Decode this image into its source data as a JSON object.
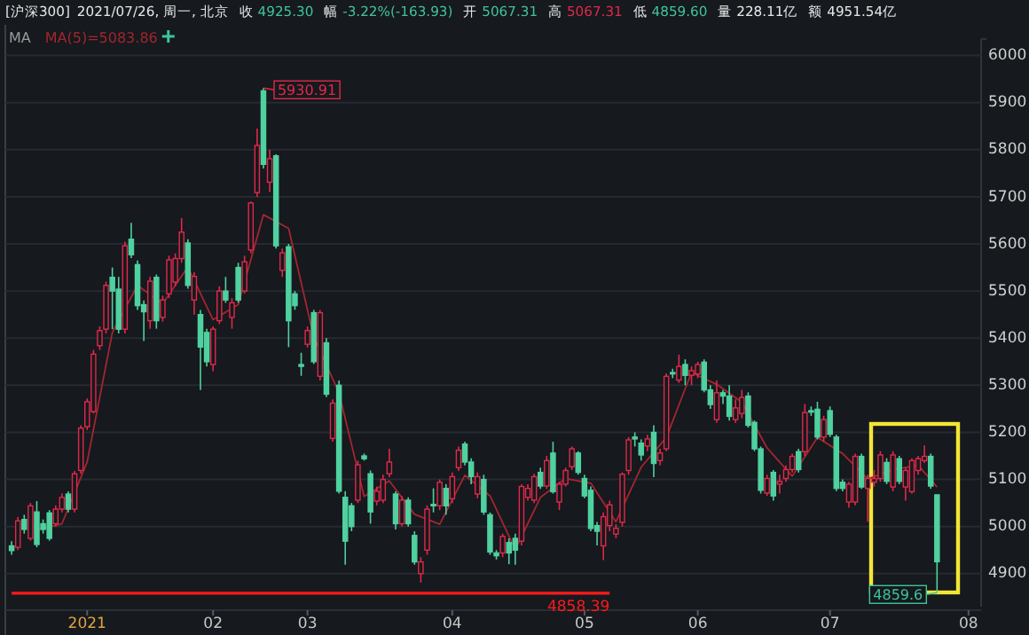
{
  "chart_data": {
    "type": "candlestick",
    "title": "[沪深300]",
    "subtitle": "2021/07/26, 周一, 北京",
    "legend_title": "MA",
    "legend": "top left",
    "grid": "y",
    "ylim": [
      4830,
      6035
    ],
    "categories": [
      null,
      null,
      null,
      null,
      null,
      null,
      null,
      null,
      null,
      null,
      null,
      null,
      "2021",
      null,
      null,
      null,
      null,
      null,
      null,
      null,
      null,
      null,
      null,
      null,
      null,
      null,
      null,
      null,
      null,
      null,
      null,
      null,
      "02",
      null,
      null,
      null,
      null,
      null,
      null,
      null,
      null,
      null,
      null,
      null,
      null,
      null,
      null,
      "03",
      null,
      null,
      null,
      null,
      null,
      null,
      null,
      null,
      null,
      null,
      null,
      null,
      null,
      null,
      null,
      null,
      null,
      null,
      null,
      null,
      null,
      null,
      "04",
      null,
      null,
      null,
      null,
      null,
      null,
      null,
      null,
      null,
      null,
      null,
      null,
      null,
      null,
      null,
      null,
      null,
      null,
      null,
      null,
      "05",
      null,
      null,
      null,
      null,
      null,
      null,
      null,
      null,
      null,
      null,
      null,
      null,
      null,
      null,
      null,
      null,
      null,
      "06",
      null,
      null,
      null,
      null,
      null,
      null,
      null,
      null,
      null,
      null,
      null,
      null,
      null,
      null,
      null,
      null,
      null,
      null,
      null,
      null,
      "07",
      null,
      null,
      null,
      null,
      null,
      null,
      null,
      null,
      null,
      null,
      null,
      null,
      null,
      null,
      null,
      null,
      null,
      null,
      null,
      null,
      null,
      "08"
    ],
    "yticks": [
      4900,
      5000,
      5100,
      5200,
      5300,
      5400,
      5500,
      5600,
      5700,
      5800,
      5900,
      6000
    ],
    "annotations": [
      "收 4925.30",
      "幅 -3.22%(-163.93)",
      "开 5067.31",
      "高 5067.31",
      "低 4859.60",
      "量 228.11亿",
      "额 4951.54亿"
    ],
    "series": [
      {
        "ohlc": [
          [
            4959,
            4969,
            4940,
            4949
          ],
          [
            4956,
            5020,
            4950,
            5012
          ],
          [
            5015,
            5025,
            4985,
            4994
          ],
          [
            4975,
            5050,
            4970,
            5044
          ],
          [
            5031,
            5054,
            4956,
            4962
          ],
          [
            5006,
            5015,
            4985,
            4994
          ],
          [
            5029,
            5035,
            4970,
            4975
          ],
          [
            5006,
            5045,
            5000,
            5037
          ],
          [
            5037,
            5070,
            5030,
            5062
          ],
          [
            5069,
            5075,
            5030,
            5037
          ],
          [
            5037,
            5118,
            5030,
            5112
          ],
          [
            5119,
            5215,
            5112,
            5209
          ],
          [
            5212,
            5272,
            5205,
            5265
          ],
          [
            5244,
            5375,
            5240,
            5366
          ],
          [
            5384,
            5425,
            5375,
            5416
          ],
          [
            5419,
            5520,
            5410,
            5512
          ],
          [
            5529,
            5550,
            5419,
            5500
          ],
          [
            5504,
            5530,
            5410,
            5419
          ],
          [
            5419,
            5605,
            5410,
            5596
          ],
          [
            5610,
            5645,
            5570,
            5577
          ],
          [
            5556,
            5565,
            5460,
            5469
          ],
          [
            5471,
            5480,
            5394,
            5456
          ],
          [
            5437,
            5530,
            5420,
            5521
          ],
          [
            5529,
            5535,
            5420,
            5437
          ],
          [
            5444,
            5490,
            5435,
            5481
          ],
          [
            5494,
            5575,
            5485,
            5566
          ],
          [
            5519,
            5580,
            5510,
            5569
          ],
          [
            5569,
            5655,
            5560,
            5625
          ],
          [
            5602,
            5610,
            5505,
            5512
          ],
          [
            5481,
            5540,
            5450,
            5531
          ],
          [
            5450,
            5460,
            5290,
            5381
          ],
          [
            5412,
            5420,
            5340,
            5350
          ],
          [
            5344,
            5425,
            5330,
            5419
          ],
          [
            5437,
            5510,
            5430,
            5500
          ],
          [
            5500,
            5530,
            5475,
            5481
          ],
          [
            5444,
            5485,
            5420,
            5475
          ],
          [
            5550,
            5560,
            5475,
            5481
          ],
          [
            5500,
            5575,
            5495,
            5562
          ],
          [
            5587,
            5690,
            5580,
            5687
          ],
          [
            5709,
            5845,
            5700,
            5809
          ],
          [
            5925,
            5930.91,
            5760,
            5769
          ],
          [
            5731,
            5800,
            5710,
            5781
          ],
          [
            5787,
            5790,
            5590,
            5596
          ],
          [
            5544,
            5590,
            5530,
            5581
          ],
          [
            5594,
            5600,
            5381,
            5437
          ],
          [
            5494,
            5500,
            5460,
            5469
          ],
          [
            5344,
            5369,
            5320,
            5340
          ],
          [
            5387,
            5425,
            5380,
            5416
          ],
          [
            5454,
            5460,
            5345,
            5350
          ],
          [
            5319,
            5460,
            5310,
            5454
          ],
          [
            5390,
            5400,
            5275,
            5281
          ],
          [
            5187,
            5270,
            5180,
            5262
          ],
          [
            5300,
            5310,
            5070,
            5075
          ],
          [
            5062,
            5075,
            4919,
            4969
          ],
          [
            5044,
            5050,
            4990,
            5000
          ],
          [
            5056,
            5140,
            5050,
            5131
          ],
          [
            5150,
            5155,
            5140,
            5144
          ],
          [
            5112,
            5119,
            5006,
            5031
          ],
          [
            5054,
            5085,
            5045,
            5075
          ],
          [
            5056,
            5110,
            5050,
            5100
          ],
          [
            5112,
            5165,
            5105,
            5137
          ],
          [
            5069,
            5075,
            4994,
            5006
          ],
          [
            5006,
            5065,
            5000,
            5056
          ],
          [
            5056,
            5062,
            5000,
            5006
          ],
          [
            4981,
            4990,
            4919,
            4925
          ],
          [
            4900,
            4935,
            4881,
            4925
          ],
          [
            4950,
            5045,
            4940,
            5037
          ],
          [
            5047,
            5081,
            5030,
            5044
          ],
          [
            5044,
            5100,
            5035,
            5094
          ],
          [
            5081,
            5090,
            5025,
            5044
          ],
          [
            5059,
            5115,
            5050,
            5106
          ],
          [
            5125,
            5170,
            5118,
            5162
          ],
          [
            5175,
            5180,
            5130,
            5137
          ],
          [
            5137,
            5145,
            5090,
            5106
          ],
          [
            5069,
            5115,
            5060,
            5106
          ],
          [
            5100,
            5110,
            5025,
            5031
          ],
          [
            5025,
            5030,
            4940,
            4946
          ],
          [
            4944,
            4950,
            4930,
            4938
          ],
          [
            4944,
            4985,
            4935,
            4979
          ],
          [
            4966,
            4975,
            4920,
            4944
          ],
          [
            4975,
            4985,
            4919,
            4950
          ],
          [
            4969,
            5090,
            4960,
            5085
          ],
          [
            5062,
            5090,
            5055,
            5081
          ],
          [
            5056,
            5112,
            5050,
            5106
          ],
          [
            5115,
            5125,
            5080,
            5086
          ],
          [
            5086,
            5150,
            5080,
            5140
          ],
          [
            5156,
            5180,
            5070,
            5074
          ],
          [
            5052,
            5095,
            5035,
            5090
          ],
          [
            5090,
            5125,
            5085,
            5119
          ],
          [
            5127,
            5170,
            5120,
            5165
          ],
          [
            5156,
            5160,
            5110,
            5115
          ],
          [
            5102,
            5110,
            5060,
            5065
          ],
          [
            5077,
            5085,
            4990,
            4996
          ],
          [
            5002,
            5010,
            4960,
            4990
          ],
          [
            4959,
            5030,
            4929,
            5021
          ],
          [
            5002,
            5055,
            4990,
            5046
          ],
          [
            4984,
            5005,
            4975,
            4996
          ],
          [
            5009,
            5115,
            5000,
            5111
          ],
          [
            5119,
            5190,
            5110,
            5184
          ],
          [
            5190,
            5200,
            5170,
            5186
          ],
          [
            5177,
            5185,
            5140,
            5152
          ],
          [
            5171,
            5195,
            5160,
            5186
          ],
          [
            5200,
            5215,
            5105,
            5134
          ],
          [
            5140,
            5165,
            5130,
            5156
          ],
          [
            5165,
            5325,
            5160,
            5319
          ],
          [
            5327,
            5335,
            5315,
            5324
          ],
          [
            5311,
            5365,
            5305,
            5340
          ],
          [
            5344,
            5355,
            5300,
            5321
          ],
          [
            5321,
            5340,
            5300,
            5331
          ],
          [
            5324,
            5350,
            5315,
            5344
          ],
          [
            5349,
            5355,
            5285,
            5290
          ],
          [
            5290,
            5300,
            5250,
            5259
          ],
          [
            5227,
            5310,
            5220,
            5284
          ],
          [
            5284,
            5290,
            5260,
            5277
          ],
          [
            5277,
            5300,
            5225,
            5234
          ],
          [
            5227,
            5270,
            5220,
            5252
          ],
          [
            5240,
            5290,
            5230,
            5274
          ],
          [
            5277,
            5285,
            5210,
            5215
          ],
          [
            5221,
            5225,
            5160,
            5165
          ],
          [
            5165,
            5170,
            5070,
            5077
          ],
          [
            5071,
            5110,
            5065,
            5102
          ],
          [
            5115,
            5120,
            5055,
            5065
          ],
          [
            5090,
            5110,
            5070,
            5096
          ],
          [
            5102,
            5130,
            5095,
            5121
          ],
          [
            5121,
            5155,
            5115,
            5149
          ],
          [
            5159,
            5165,
            5115,
            5121
          ],
          [
            5159,
            5260,
            5150,
            5242
          ],
          [
            5246,
            5255,
            5235,
            5244
          ],
          [
            5249,
            5265,
            5185,
            5190
          ],
          [
            5190,
            5235,
            5180,
            5227
          ],
          [
            5246,
            5255,
            5190,
            5196
          ],
          [
            5190,
            5195,
            5075,
            5081
          ],
          [
            5094,
            5100,
            5075,
            5081
          ],
          [
            5052,
            5095,
            5040,
            5090
          ],
          [
            5052,
            5155,
            5045,
            5149
          ],
          [
            5149,
            5155,
            5080,
            5084
          ],
          [
            5081,
            5110,
            5010,
            5102
          ],
          [
            5094,
            5120,
            5085,
            5102
          ],
          [
            5102,
            5160,
            5095,
            5152
          ],
          [
            5136,
            5145,
            5090,
            5096
          ],
          [
            5084,
            5160,
            5075,
            5152
          ],
          [
            5144,
            5150,
            5090,
            5096
          ],
          [
            5084,
            5125,
            5055,
            5119
          ],
          [
            5074,
            5145,
            5070,
            5140
          ],
          [
            5119,
            5150,
            5110,
            5144
          ],
          [
            5140,
            5172,
            5135,
            5149
          ],
          [
            5149,
            5155,
            5080,
            5086
          ],
          [
            5067.31,
            5067.31,
            4859.6,
            4925.3
          ],
          null,
          null,
          null,
          null,
          null
        ],
        "colors": [
          "#4fd1a0",
          "#e0294a",
          "#4fd1a0",
          "#e0294a",
          "#4fd1a0",
          "#4fd1a0",
          "#4fd1a0",
          "#e0294a",
          "#e0294a",
          "#4fd1a0",
          "#e0294a",
          "#e0294a",
          "#e0294a",
          "#e0294a",
          "#e0294a",
          "#e0294a",
          "#4fd1a0",
          "#4fd1a0",
          "#e0294a",
          "#4fd1a0",
          "#4fd1a0",
          "#4fd1a0",
          "#e0294a",
          "#4fd1a0",
          "#e0294a",
          "#e0294a",
          "#e0294a",
          "#e0294a",
          "#4fd1a0",
          "#e0294a",
          "#4fd1a0",
          "#4fd1a0",
          "#e0294a",
          "#e0294a",
          "#4fd1a0",
          "#e0294a",
          "#4fd1a0",
          "#e0294a",
          "#e0294a",
          "#e0294a",
          "#4fd1a0",
          "#e0294a",
          "#4fd1a0",
          "#e0294a",
          "#4fd1a0",
          "#4fd1a0",
          "#4fd1a0",
          "#e0294a",
          "#4fd1a0",
          "#e0294a",
          "#4fd1a0",
          "#e0294a",
          "#4fd1a0",
          "#4fd1a0",
          "#4fd1a0",
          "#e0294a",
          "#4fd1a0",
          "#4fd1a0",
          "#e0294a",
          "#e0294a",
          "#e0294a",
          "#4fd1a0",
          "#e0294a",
          "#4fd1a0",
          "#4fd1a0",
          "#e0294a",
          "#e0294a",
          "#4fd1a0",
          "#e0294a",
          "#4fd1a0",
          "#e0294a",
          "#e0294a",
          "#4fd1a0",
          "#4fd1a0",
          "#e0294a",
          "#4fd1a0",
          "#4fd1a0",
          "#4fd1a0",
          "#e0294a",
          "#4fd1a0",
          "#4fd1a0",
          "#e0294a",
          "#e0294a",
          "#e0294a",
          "#4fd1a0",
          "#e0294a",
          "#4fd1a0",
          "#e0294a",
          "#e0294a",
          "#e0294a",
          "#4fd1a0",
          "#4fd1a0",
          "#4fd1a0",
          "#4fd1a0",
          "#e0294a",
          "#e0294a",
          "#e0294a",
          "#e0294a",
          "#e0294a",
          "#4fd1a0",
          "#4fd1a0",
          "#e0294a",
          "#4fd1a0",
          "#e0294a",
          "#e0294a",
          "#4fd1a0",
          "#e0294a",
          "#4fd1a0",
          "#e0294a",
          "#e0294a",
          "#4fd1a0",
          "#4fd1a0",
          "#e0294a",
          "#4fd1a0",
          "#4fd1a0",
          "#e0294a",
          "#e0294a",
          "#4fd1a0",
          "#4fd1a0",
          "#4fd1a0",
          "#e0294a",
          "#4fd1a0",
          "#e0294a",
          "#e0294a",
          "#e0294a",
          "#4fd1a0",
          "#e0294a",
          "#4fd1a0",
          "#4fd1a0",
          "#e0294a",
          "#4fd1a0",
          "#4fd1a0",
          "#4fd1a0",
          "#e0294a",
          "#e0294a",
          "#4fd1a0",
          "#e0294a",
          "#e0294a",
          "#e0294a",
          "#4fd1a0",
          "#e0294a",
          "#4fd1a0",
          "#e0294a",
          "#e0294a",
          "#e0294a",
          "#e0294a",
          "#4fd1a0",
          "#4fd1a0",
          null,
          null,
          null,
          null,
          null
        ],
        "value_labels": [
          null,
          null,
          null,
          null,
          null,
          null,
          null,
          null,
          null,
          null,
          null,
          null,
          null,
          null,
          null,
          null,
          null,
          null,
          null,
          null,
          null,
          null,
          null,
          null,
          null,
          null,
          null,
          null,
          null,
          null,
          null,
          null,
          null,
          null,
          null,
          null,
          null,
          null,
          null,
          null,
          "5930.91",
          null,
          null,
          null,
          null,
          null,
          null,
          null,
          null,
          null,
          null,
          null,
          null,
          null,
          null,
          null,
          null,
          null,
          null,
          null,
          null,
          null,
          null,
          null,
          null,
          null,
          null,
          null,
          null,
          null,
          null,
          null,
          null,
          null,
          null,
          null,
          null,
          null,
          null,
          null,
          null,
          null,
          null,
          null,
          null,
          null,
          null,
          null,
          null,
          null,
          null,
          null,
          null,
          null,
          null,
          null,
          null,
          null,
          null,
          null,
          null,
          null,
          null,
          null,
          null,
          null,
          null,
          null,
          null,
          null,
          null,
          null,
          null,
          null,
          null,
          null,
          null,
          null,
          null,
          null,
          null,
          null,
          null,
          null,
          null,
          null,
          null,
          null,
          null,
          null,
          null,
          null,
          null,
          null,
          null,
          null,
          null,
          null,
          null,
          null,
          null,
          null,
          null,
          null,
          null,
          null,
          null,
          "4859.6",
          null,
          null,
          null,
          null,
          null
        ]
      },
      {
        "type": "line",
        "name": "MA(5)=5083.86",
        "color": "#a3262f",
        "values": [
          null,
          null,
          null,
          null,
          4992,
          null,
          null,
          null,
          5006,
          null,
          null,
          null,
          5137,
          null,
          null,
          null,
          5412,
          null,
          null,
          null,
          5512,
          null,
          null,
          null,
          5473,
          null,
          null,
          null,
          5551,
          null,
          null,
          null,
          5439,
          null,
          null,
          null,
          5471,
          null,
          null,
          null,
          5662,
          null,
          null,
          null,
          5633,
          null,
          null,
          null,
          5402,
          null,
          null,
          null,
          5284,
          null,
          null,
          null,
          5064,
          null,
          null,
          null,
          5097,
          null,
          null,
          null,
          5026,
          null,
          null,
          null,
          5005,
          null,
          null,
          null,
          5109,
          null,
          null,
          null,
          5065,
          null,
          null,
          null,
          4951,
          null,
          null,
          null,
          5062,
          null,
          null,
          null,
          5102,
          null,
          null,
          null,
          5092,
          null,
          null,
          null,
          5010,
          null,
          null,
          null,
          5126,
          null,
          null,
          null,
          5189,
          null,
          null,
          null,
          5327,
          null,
          null,
          null,
          5302,
          null,
          null,
          null,
          5264,
          null,
          null,
          null,
          5167,
          null,
          null,
          null,
          5107,
          null,
          null,
          null,
          5189,
          null,
          null,
          null,
          5155,
          null,
          null,
          null,
          5101,
          null,
          null,
          null,
          5121,
          null,
          null,
          null,
          5130,
          null,
          null,
          5083.86,
          null,
          null,
          null,
          null,
          null
        ]
      },
      {
        "type": "line",
        "color": "#ff1a1a",
        "values": [
          4858.39,
          null,
          null,
          null,
          null,
          null,
          null,
          null,
          null,
          null,
          null,
          null,
          null,
          null,
          null,
          null,
          null,
          null,
          null,
          null,
          null,
          null,
          null,
          null,
          null,
          null,
          null,
          null,
          null,
          null,
          null,
          null,
          null,
          null,
          null,
          null,
          null,
          null,
          null,
          null,
          null,
          null,
          null,
          null,
          null,
          null,
          null,
          null,
          null,
          null,
          null,
          null,
          null,
          null,
          null,
          null,
          null,
          null,
          null,
          null,
          null,
          null,
          null,
          null,
          null,
          null,
          null,
          null,
          null,
          null,
          null,
          null,
          null,
          null,
          null,
          null,
          null,
          null,
          null,
          null,
          null,
          null,
          null,
          null,
          null,
          null,
          null,
          null,
          null,
          null,
          null,
          null,
          null,
          null,
          null,
          4858.39,
          null,
          null,
          null,
          null,
          null,
          null,
          null,
          null,
          null,
          null,
          null,
          null,
          null,
          null,
          null,
          null,
          null,
          null,
          null,
          null,
          null,
          null,
          null,
          null,
          null,
          null,
          null,
          null,
          null,
          null,
          null,
          null,
          null,
          null,
          null,
          null,
          null,
          null,
          null,
          null,
          null,
          null,
          null,
          null,
          null,
          null,
          null,
          null,
          null,
          null,
          null,
          null,
          null,
          null,
          null,
          null,
          null
        ],
        "value_labels": [
          null,
          null,
          null,
          null,
          null,
          null,
          null,
          null,
          null,
          null,
          null,
          null,
          null,
          null,
          null,
          null,
          null,
          null,
          null,
          null,
          null,
          null,
          null,
          null,
          null,
          null,
          null,
          null,
          null,
          null,
          null,
          null,
          null,
          null,
          null,
          null,
          null,
          null,
          null,
          null,
          null,
          null,
          null,
          null,
          null,
          null,
          null,
          null,
          null,
          null,
          null,
          null,
          null,
          null,
          null,
          null,
          null,
          null,
          null,
          null,
          null,
          null,
          null,
          null,
          null,
          null,
          null,
          null,
          null,
          null,
          null,
          null,
          null,
          null,
          null,
          null,
          null,
          null,
          null,
          null,
          null,
          null,
          null,
          null,
          null,
          null,
          null,
          null,
          null,
          null,
          null,
          null,
          null,
          null,
          null,
          "4858.39",
          null,
          null,
          null,
          null,
          null,
          null,
          null,
          null,
          null,
          null,
          null,
          null,
          null,
          null,
          null,
          null,
          null,
          null,
          null,
          null,
          null,
          null,
          null,
          null,
          null,
          null,
          null,
          null,
          null,
          null,
          null,
          null,
          null,
          null,
          null,
          null,
          null,
          null,
          null,
          null,
          null,
          null,
          null,
          null,
          null,
          null,
          null,
          null,
          null,
          null,
          null,
          null,
          null,
          null,
          null,
          null,
          null
        ]
      }
    ]
  }
}
